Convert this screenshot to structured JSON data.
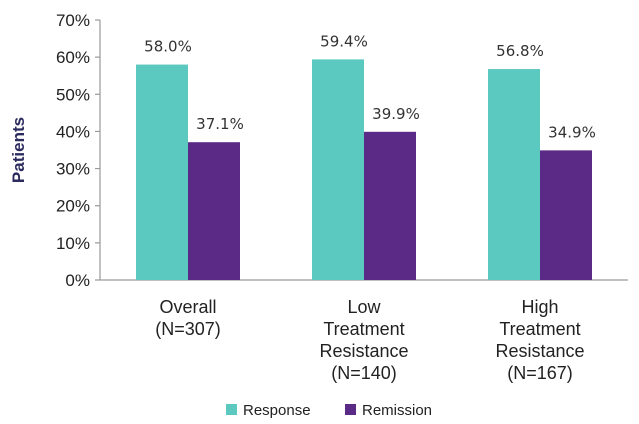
{
  "chart_data": {
    "type": "bar",
    "ylabel": "Patients",
    "xlabel": "",
    "ylim": [
      0,
      70
    ],
    "yticks": [
      0,
      10,
      20,
      30,
      40,
      50,
      60,
      70
    ],
    "ytick_labels": [
      "0%",
      "10%",
      "20%",
      "30%",
      "40%",
      "50%",
      "60%",
      "70%"
    ],
    "categories": [
      [
        "Overall",
        "(N=307)"
      ],
      [
        "Low",
        "Treatment",
        "Resistance",
        "(N=140)"
      ],
      [
        "High",
        "Treatment",
        "Resistance",
        "(N=167)"
      ]
    ],
    "series": [
      {
        "name": "Response",
        "color": "#5cc9c0",
        "values": [
          58.0,
          59.4,
          56.8
        ],
        "labels": [
          "58.0%",
          "59.4%",
          "56.8%"
        ]
      },
      {
        "name": "Remission",
        "color": "#5b2a86",
        "values": [
          37.1,
          39.9,
          34.9
        ],
        "labels": [
          "37.1%",
          "39.9%",
          "34.9%"
        ]
      }
    ],
    "grid": false,
    "legend": "bottom"
  }
}
